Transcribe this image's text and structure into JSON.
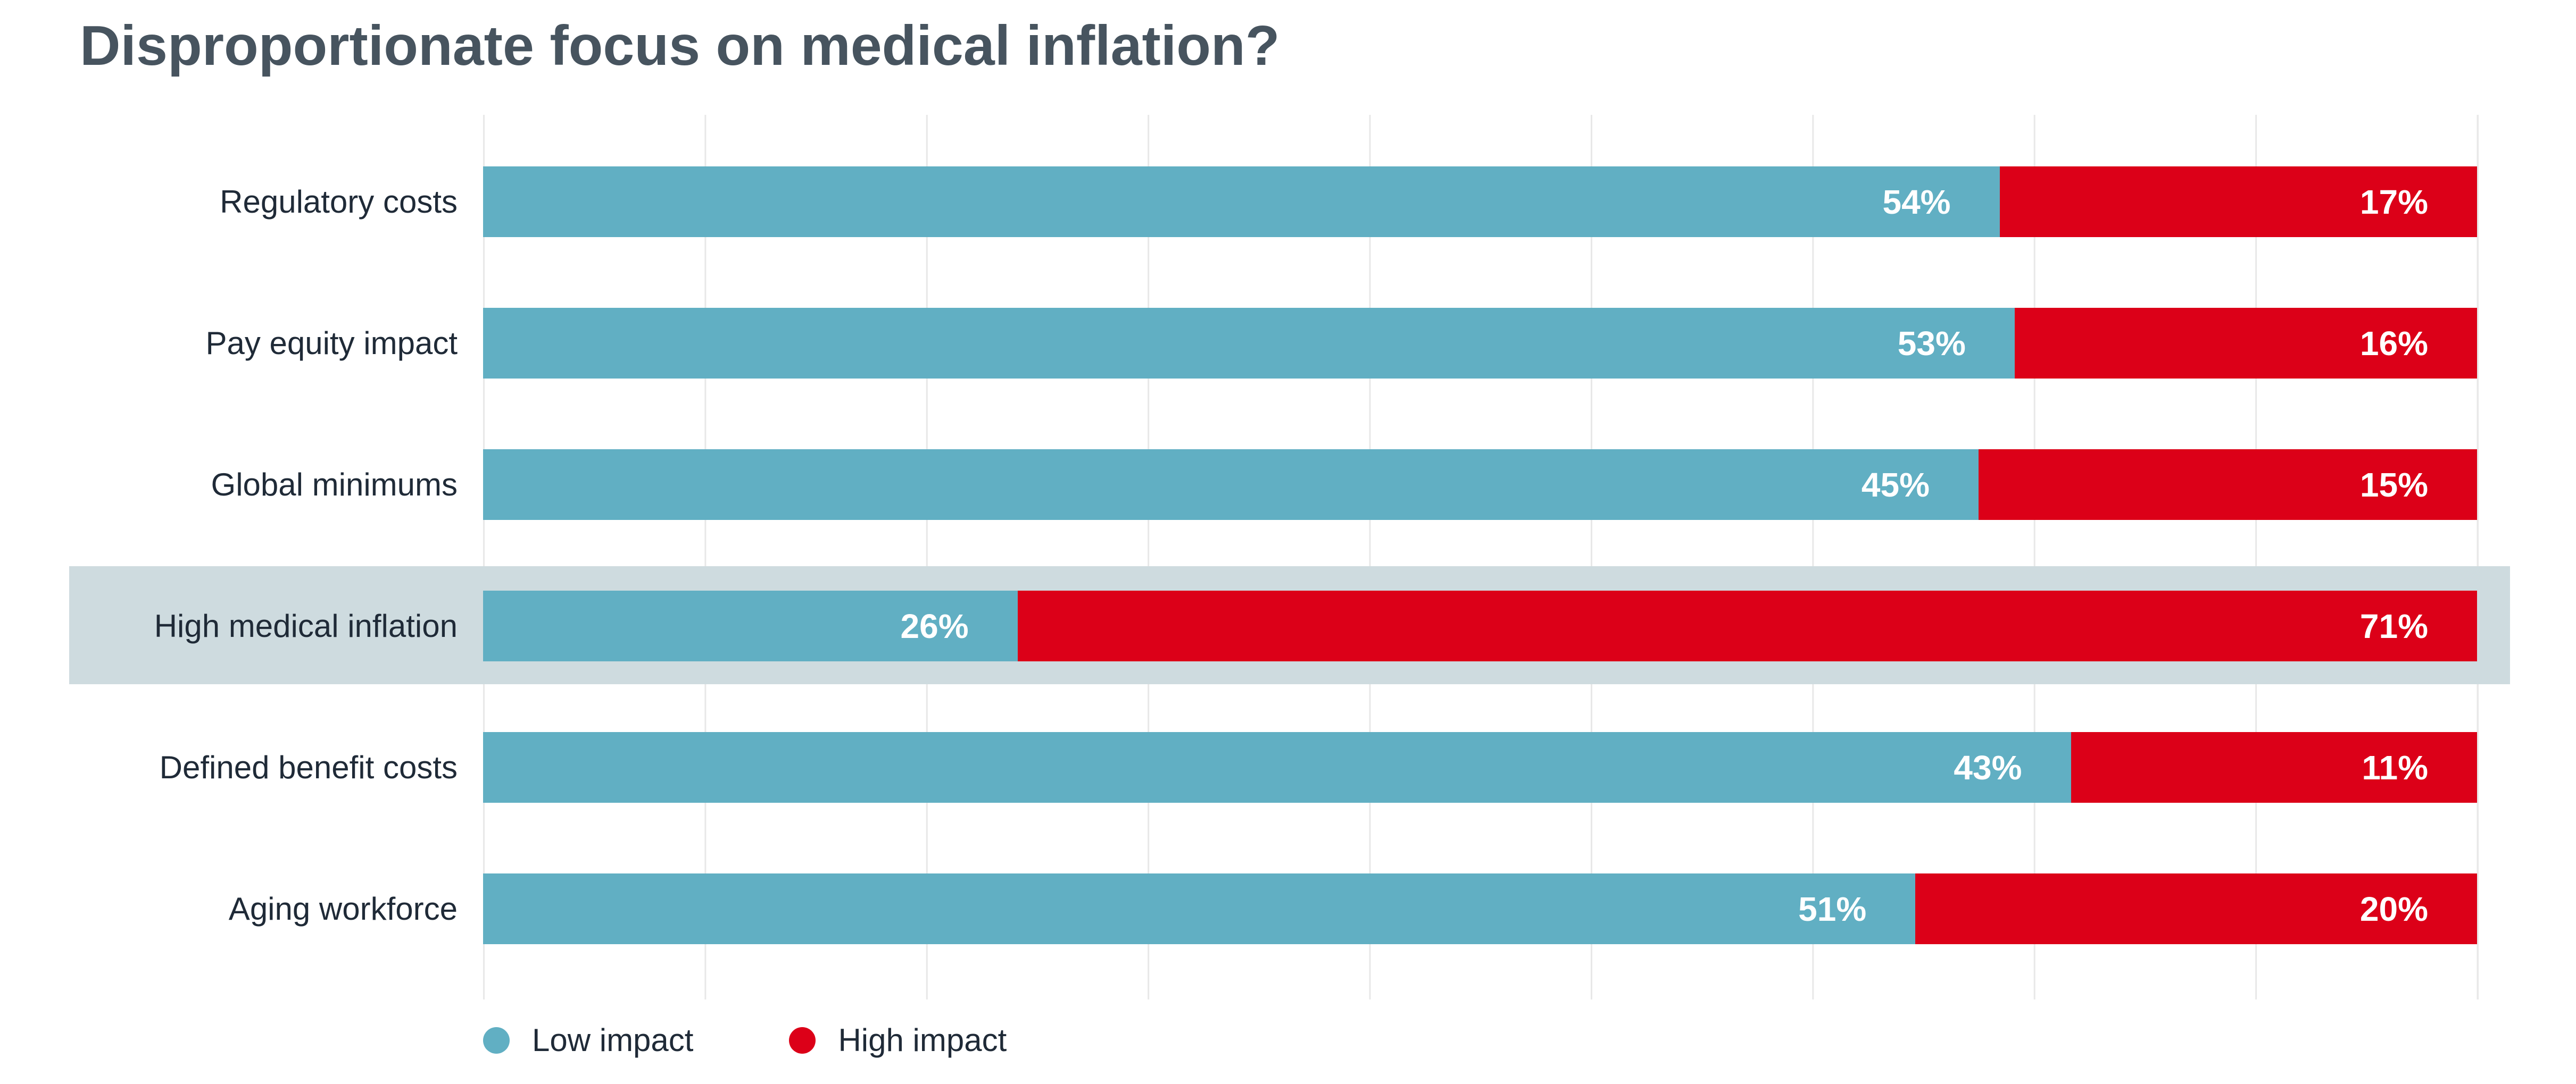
{
  "header": {
    "title": "Disproportionate focus on medical inflation?"
  },
  "colors": {
    "title": "#47545f",
    "category_label": "#1f2a37",
    "gridline": "#e8e8e8",
    "bar_value_text": "#ffffff",
    "background": "#ffffff"
  },
  "chart_data": {
    "type": "bar",
    "orientation": "horizontal",
    "stacked": true,
    "normalized_to_full_width": true,
    "title": "Disproportionate focus on medical inflation?",
    "xlabel": "",
    "ylabel": "",
    "grid": true,
    "legend_position": "bottom",
    "value_suffix": "%",
    "categories": [
      "Regulatory costs",
      "Pay equity impact",
      "Global minimums",
      "High medical inflation",
      "Defined benefit costs",
      "Aging workforce"
    ],
    "series": [
      {
        "name": "Low impact",
        "color": "#61afc3",
        "values": [
          54,
          53,
          45,
          26,
          43,
          51
        ]
      },
      {
        "name": "High impact",
        "color": "#dc0018",
        "values": [
          17,
          16,
          15,
          71,
          11,
          20
        ]
      }
    ],
    "highlighted_category": "High medical inflation",
    "highlight_color": "#cedbdf"
  },
  "legend": {
    "items": [
      {
        "label": "Low impact",
        "color": "#61afc3"
      },
      {
        "label": "High impact",
        "color": "#dc0018"
      }
    ]
  }
}
